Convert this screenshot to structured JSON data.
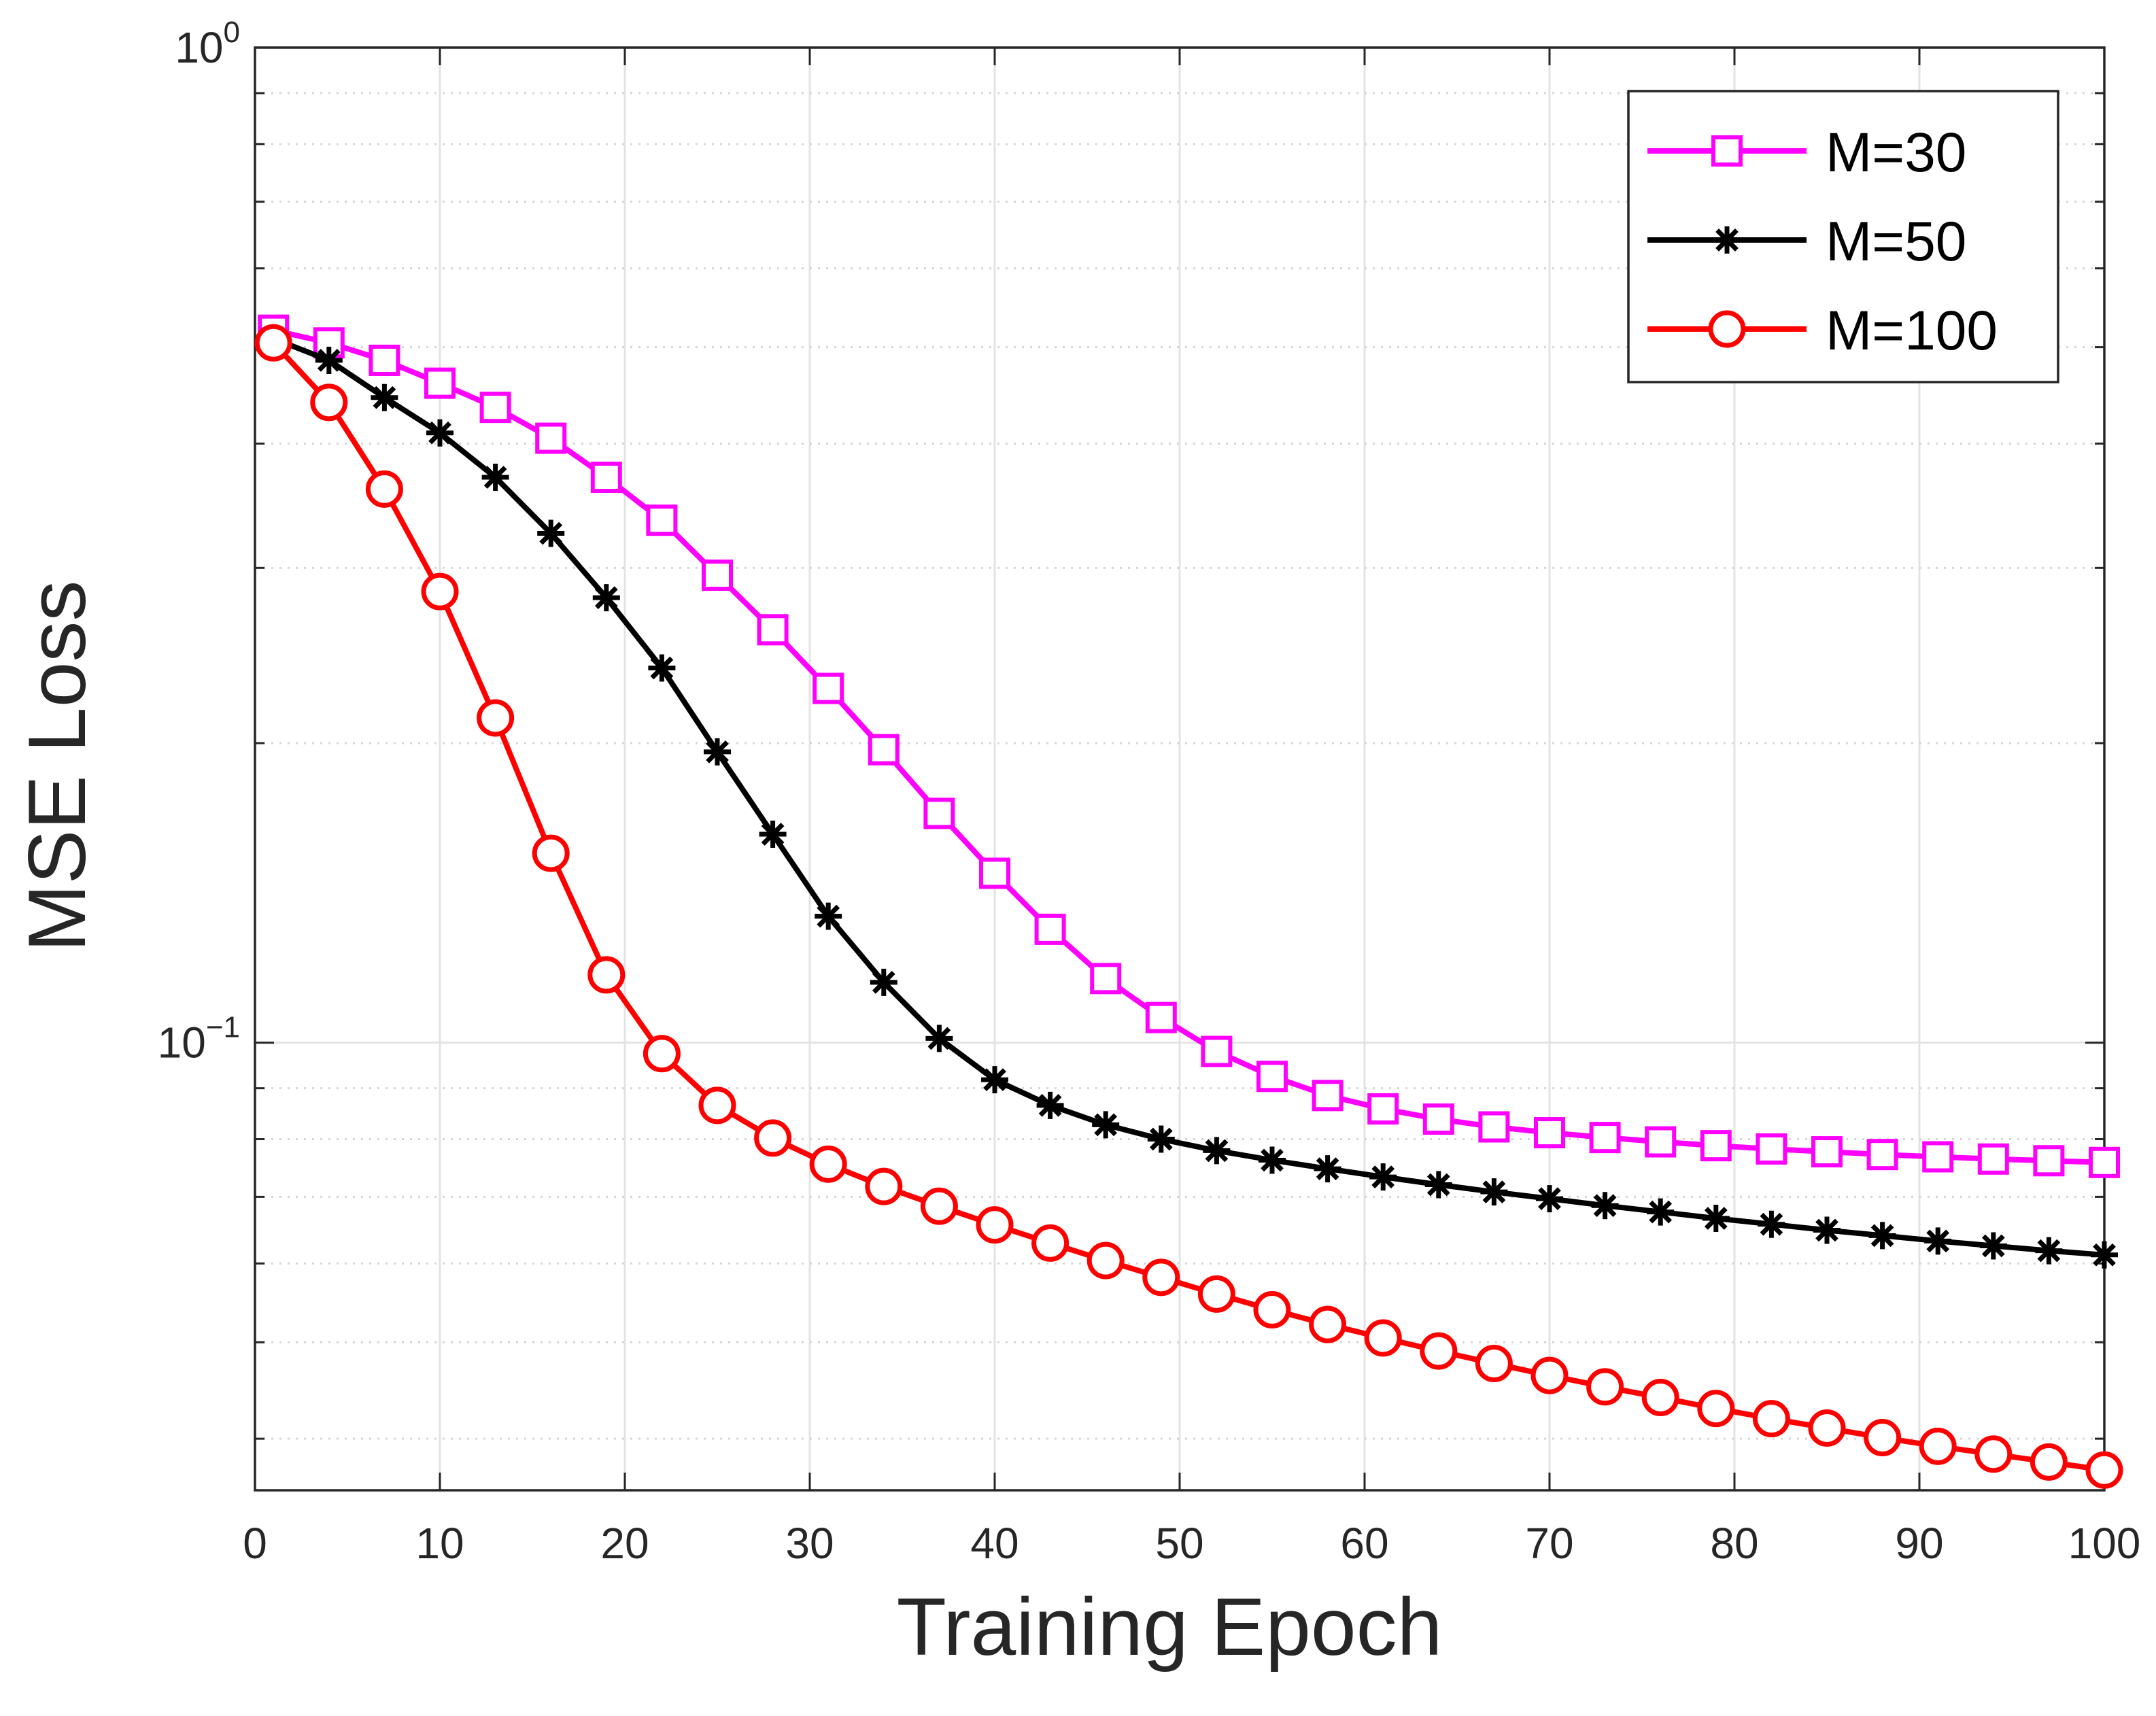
{
  "chart_data": {
    "type": "line",
    "title": "",
    "xlabel": "Training Epoch",
    "ylabel": "MSE Loss",
    "xscale": "linear",
    "yscale": "log",
    "xlim": [
      0,
      100
    ],
    "ylim": [
      0.0355,
      1.0
    ],
    "grid": true,
    "legend_position": "top-right",
    "x_ticks": [
      0,
      10,
      20,
      30,
      40,
      50,
      60,
      70,
      80,
      90,
      100
    ],
    "x_tick_labels": [
      "0",
      "10",
      "20",
      "30",
      "40",
      "50",
      "60",
      "70",
      "80",
      "90",
      "100"
    ],
    "y_ticks": [
      {
        "value": 0.1,
        "base": "10",
        "exp": "−1"
      },
      {
        "value": 1.0,
        "base": "10",
        "exp": "0"
      }
    ],
    "x": [
      1,
      4,
      7,
      10,
      13,
      16,
      19,
      22,
      25,
      28,
      31,
      34,
      37,
      40,
      43,
      46,
      49,
      52,
      55,
      58,
      61,
      64,
      67,
      70,
      73,
      76,
      79,
      82,
      85,
      88,
      91,
      94,
      97,
      100
    ],
    "series": [
      {
        "name": "M=30",
        "color": "#ff00ff",
        "marker": "square",
        "values": [
          0.52,
          0.505,
          0.485,
          0.46,
          0.435,
          0.405,
          0.37,
          0.335,
          0.295,
          0.26,
          0.227,
          0.197,
          0.17,
          0.148,
          0.13,
          0.116,
          0.106,
          0.098,
          0.0925,
          0.0885,
          0.0858,
          0.0838,
          0.0823,
          0.0812,
          0.0803,
          0.0795,
          0.0788,
          0.0782,
          0.0777,
          0.0772,
          0.0768,
          0.0764,
          0.0761,
          0.0758
        ]
      },
      {
        "name": "M=50",
        "color": "#000000",
        "marker": "asterisk",
        "values": [
          0.51,
          0.485,
          0.445,
          0.41,
          0.37,
          0.325,
          0.28,
          0.238,
          0.196,
          0.162,
          0.134,
          0.115,
          0.101,
          0.0918,
          0.0865,
          0.0827,
          0.08,
          0.0779,
          0.0762,
          0.0747,
          0.0733,
          0.072,
          0.0708,
          0.0697,
          0.0686,
          0.0676,
          0.0666,
          0.0657,
          0.0648,
          0.064,
          0.0632,
          0.0625,
          0.0618,
          0.0612
        ]
      },
      {
        "name": "M=100",
        "color": "#ff0000",
        "marker": "circle",
        "values": [
          0.505,
          0.44,
          0.36,
          0.284,
          0.212,
          0.155,
          0.117,
          0.0975,
          0.0865,
          0.0802,
          0.0755,
          0.0717,
          0.0685,
          0.0656,
          0.0629,
          0.0604,
          0.0581,
          0.0559,
          0.0539,
          0.0521,
          0.0505,
          0.049,
          0.0476,
          0.0463,
          0.0451,
          0.044,
          0.0429,
          0.0419,
          0.041,
          0.0401,
          0.0393,
          0.0386,
          0.0379,
          0.0372
        ]
      }
    ]
  }
}
